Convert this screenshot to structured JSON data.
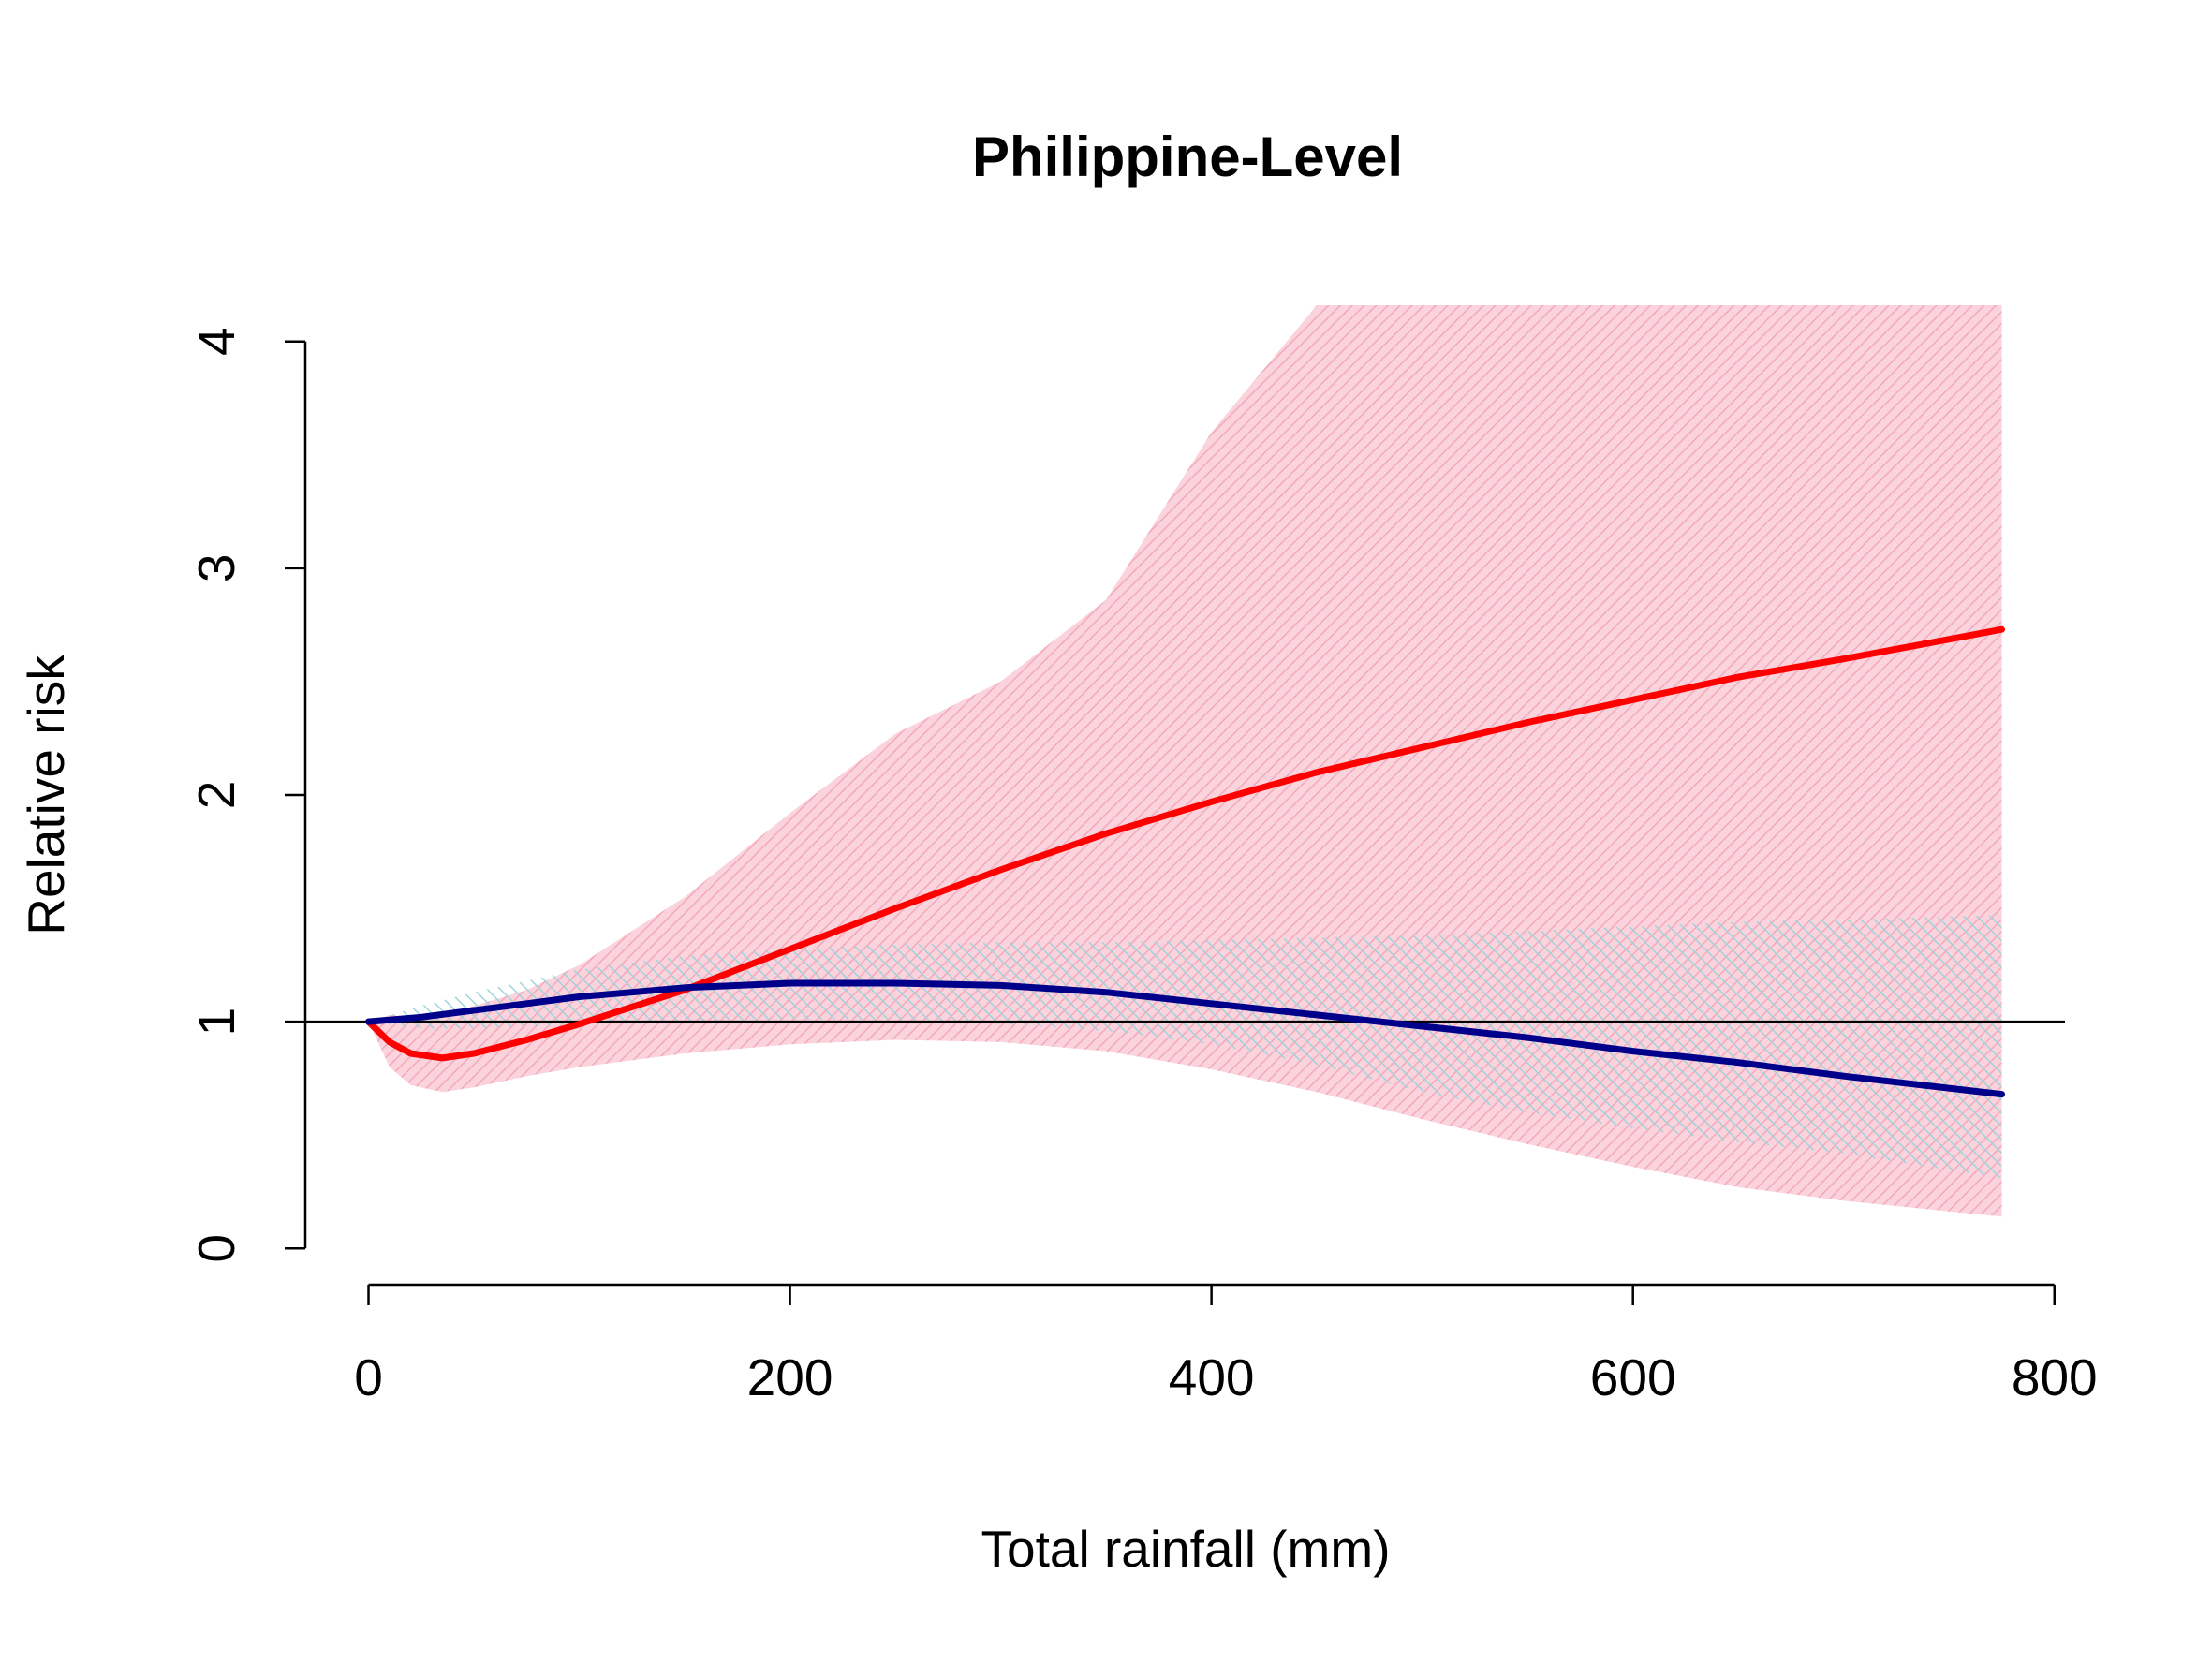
{
  "chart_data": {
    "type": "line",
    "title": "Philippine-Level",
    "xlabel": "Total rainfall (mm)",
    "ylabel": "Relative risk",
    "xlim": [
      -30,
      805
    ],
    "ylim": [
      -0.16,
      4.16
    ],
    "xticks": [
      "0",
      "200",
      "400",
      "600",
      "800"
    ],
    "yticks": [
      "0",
      "1",
      "2",
      "3",
      "4"
    ],
    "reference_line": 1,
    "grid": false,
    "legend": "none",
    "series": [
      {
        "color": "#FF0000",
        "band_color": "#F7B8C6",
        "x": [
          0,
          10,
          20,
          35,
          50,
          75,
          100,
          150,
          200,
          250,
          300,
          350,
          400,
          450,
          500,
          550,
          600,
          650,
          700,
          775
        ],
        "y": [
          1.0,
          0.91,
          0.86,
          0.84,
          0.86,
          0.92,
          0.99,
          1.14,
          1.32,
          1.5,
          1.67,
          1.83,
          1.97,
          2.1,
          2.21,
          2.32,
          2.42,
          2.52,
          2.6,
          2.73
        ],
        "lower": [
          1.0,
          0.8,
          0.72,
          0.69,
          0.71,
          0.76,
          0.8,
          0.86,
          0.9,
          0.92,
          0.91,
          0.87,
          0.79,
          0.69,
          0.57,
          0.46,
          0.36,
          0.27,
          0.21,
          0.14
        ],
        "upper": [
          1.0,
          1.03,
          1.02,
          1.03,
          1.07,
          1.14,
          1.25,
          1.55,
          1.92,
          2.27,
          2.5,
          2.86,
          3.6,
          4.16,
          4.16,
          4.16,
          4.16,
          4.16,
          4.16,
          4.16
        ]
      },
      {
        "color": "#00008B",
        "band_color": "#A8D8E0",
        "x": [
          0,
          25,
          50,
          75,
          100,
          150,
          200,
          250,
          300,
          350,
          400,
          450,
          500,
          550,
          600,
          650,
          700,
          775
        ],
        "y": [
          1.0,
          1.02,
          1.05,
          1.08,
          1.11,
          1.15,
          1.17,
          1.17,
          1.16,
          1.13,
          1.08,
          1.03,
          0.98,
          0.93,
          0.87,
          0.82,
          0.76,
          0.68
        ],
        "lower": [
          1.0,
          0.97,
          0.97,
          0.98,
          0.99,
          1.0,
          1.01,
          1.01,
          0.99,
          0.96,
          0.9,
          0.81,
          0.69,
          0.6,
          0.53,
          0.47,
          0.42,
          0.31
        ],
        "upper": [
          1.0,
          1.07,
          1.13,
          1.18,
          1.23,
          1.29,
          1.32,
          1.34,
          1.35,
          1.35,
          1.36,
          1.37,
          1.38,
          1.4,
          1.42,
          1.44,
          1.45,
          1.47
        ]
      }
    ]
  }
}
